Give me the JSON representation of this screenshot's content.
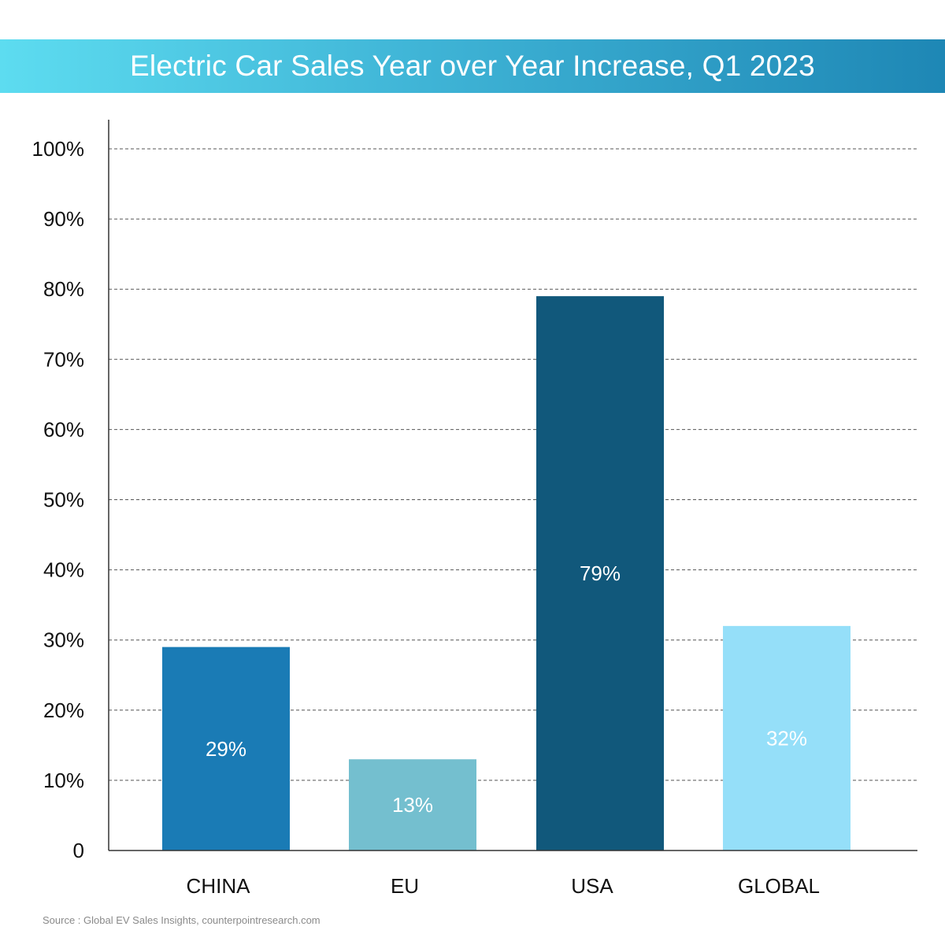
{
  "chart_data": {
    "type": "bar",
    "title": "Electric Car Sales Year over Year Increase, Q1 2023",
    "categories": [
      "CHINA",
      "EU",
      "USA",
      "GLOBAL"
    ],
    "values": [
      29,
      13,
      79,
      32
    ],
    "data_labels": [
      "29%",
      "13%",
      "79%",
      "32%"
    ],
    "bar_colors": [
      "#1a7bb5",
      "#74bfcf",
      "#11587b",
      "#95dff9"
    ],
    "ylim": [
      0,
      100
    ],
    "yticks": [
      0,
      10,
      20,
      30,
      40,
      50,
      60,
      70,
      80,
      90,
      100
    ],
    "ytick_labels": [
      "0",
      "10%",
      "20%",
      "30%",
      "40%",
      "50%",
      "60%",
      "70%",
      "80%",
      "90%",
      "100%"
    ],
    "grid": true,
    "grid_style": "dashed",
    "legend": "none",
    "xlabel": "",
    "ylabel": ""
  },
  "source": "Source : Global EV Sales Insights, counterpointresearch.com"
}
